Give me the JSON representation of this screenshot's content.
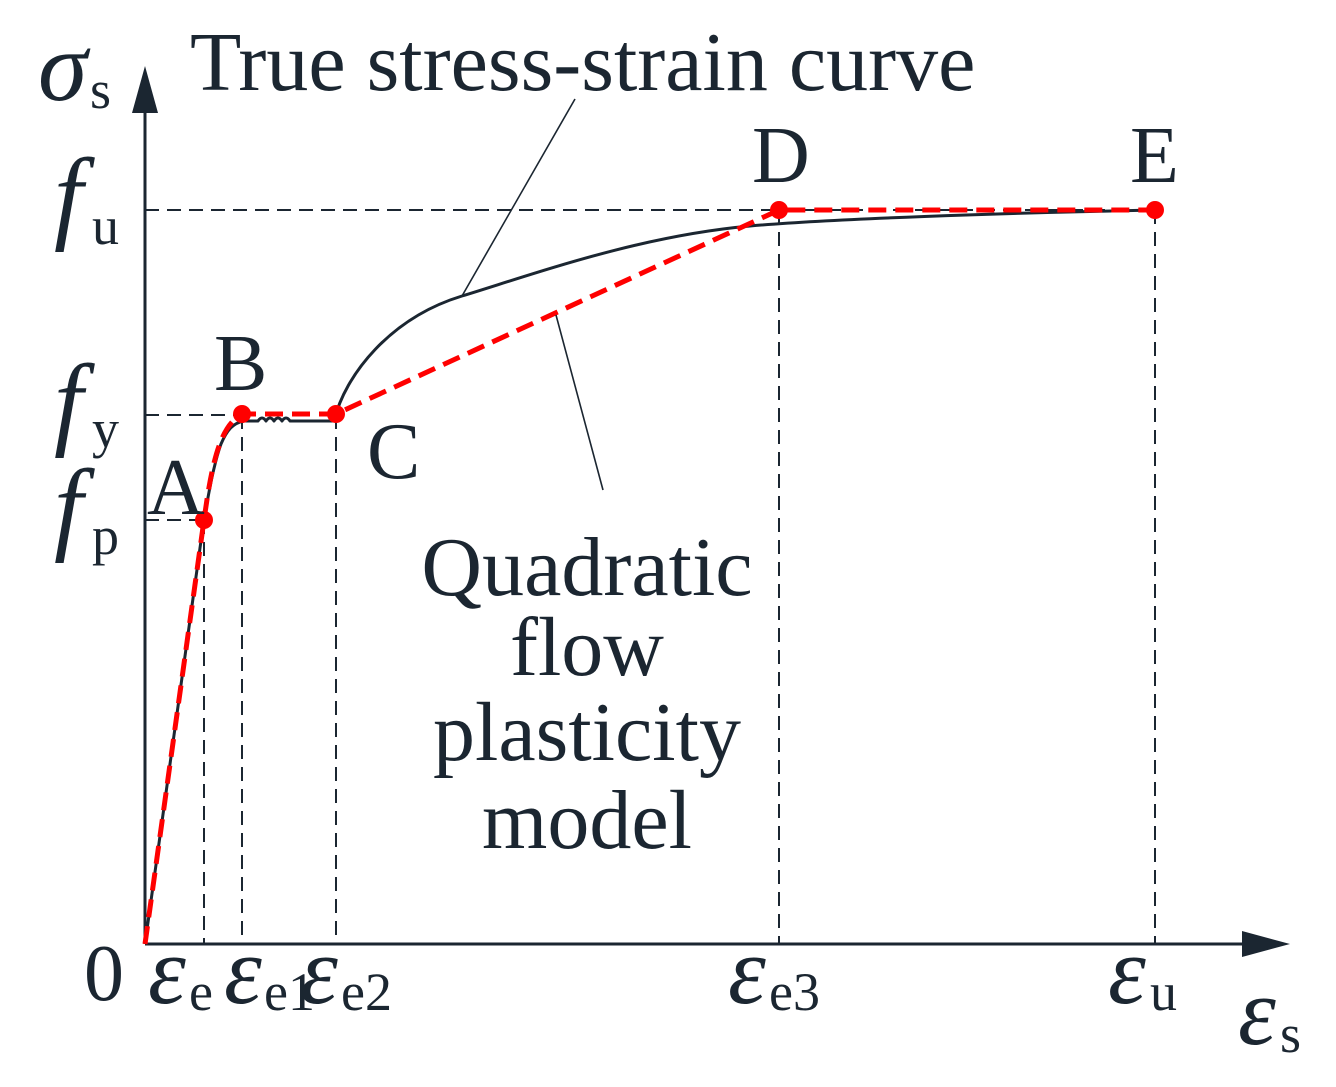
{
  "true_curve_label": "True stress-strain curve",
  "model_label": {
    "line1": "Quadratic",
    "line2": "flow",
    "line3": "plasticity",
    "line4": "model"
  },
  "y_axis": {
    "symbol": "σ",
    "subscript": "s"
  },
  "x_axis": {
    "symbol": "ε",
    "subscript": "s"
  },
  "origin": "0",
  "y_ticks": [
    {
      "symbol": "f",
      "subscript": "u"
    },
    {
      "symbol": "f",
      "subscript": "y"
    },
    {
      "symbol": "f",
      "subscript": "p"
    }
  ],
  "x_ticks": [
    {
      "symbol": "ε",
      "subscript": "e"
    },
    {
      "symbol": "ε",
      "subscript": "e1"
    },
    {
      "symbol": "ε",
      "subscript": "e2"
    },
    {
      "symbol": "ε",
      "subscript": "e3"
    },
    {
      "symbol": "ε",
      "subscript": "u"
    }
  ],
  "points": [
    "A",
    "B",
    "C",
    "D",
    "E"
  ],
  "colors": {
    "model": "#ff0000",
    "curve": "#1b2631"
  }
}
